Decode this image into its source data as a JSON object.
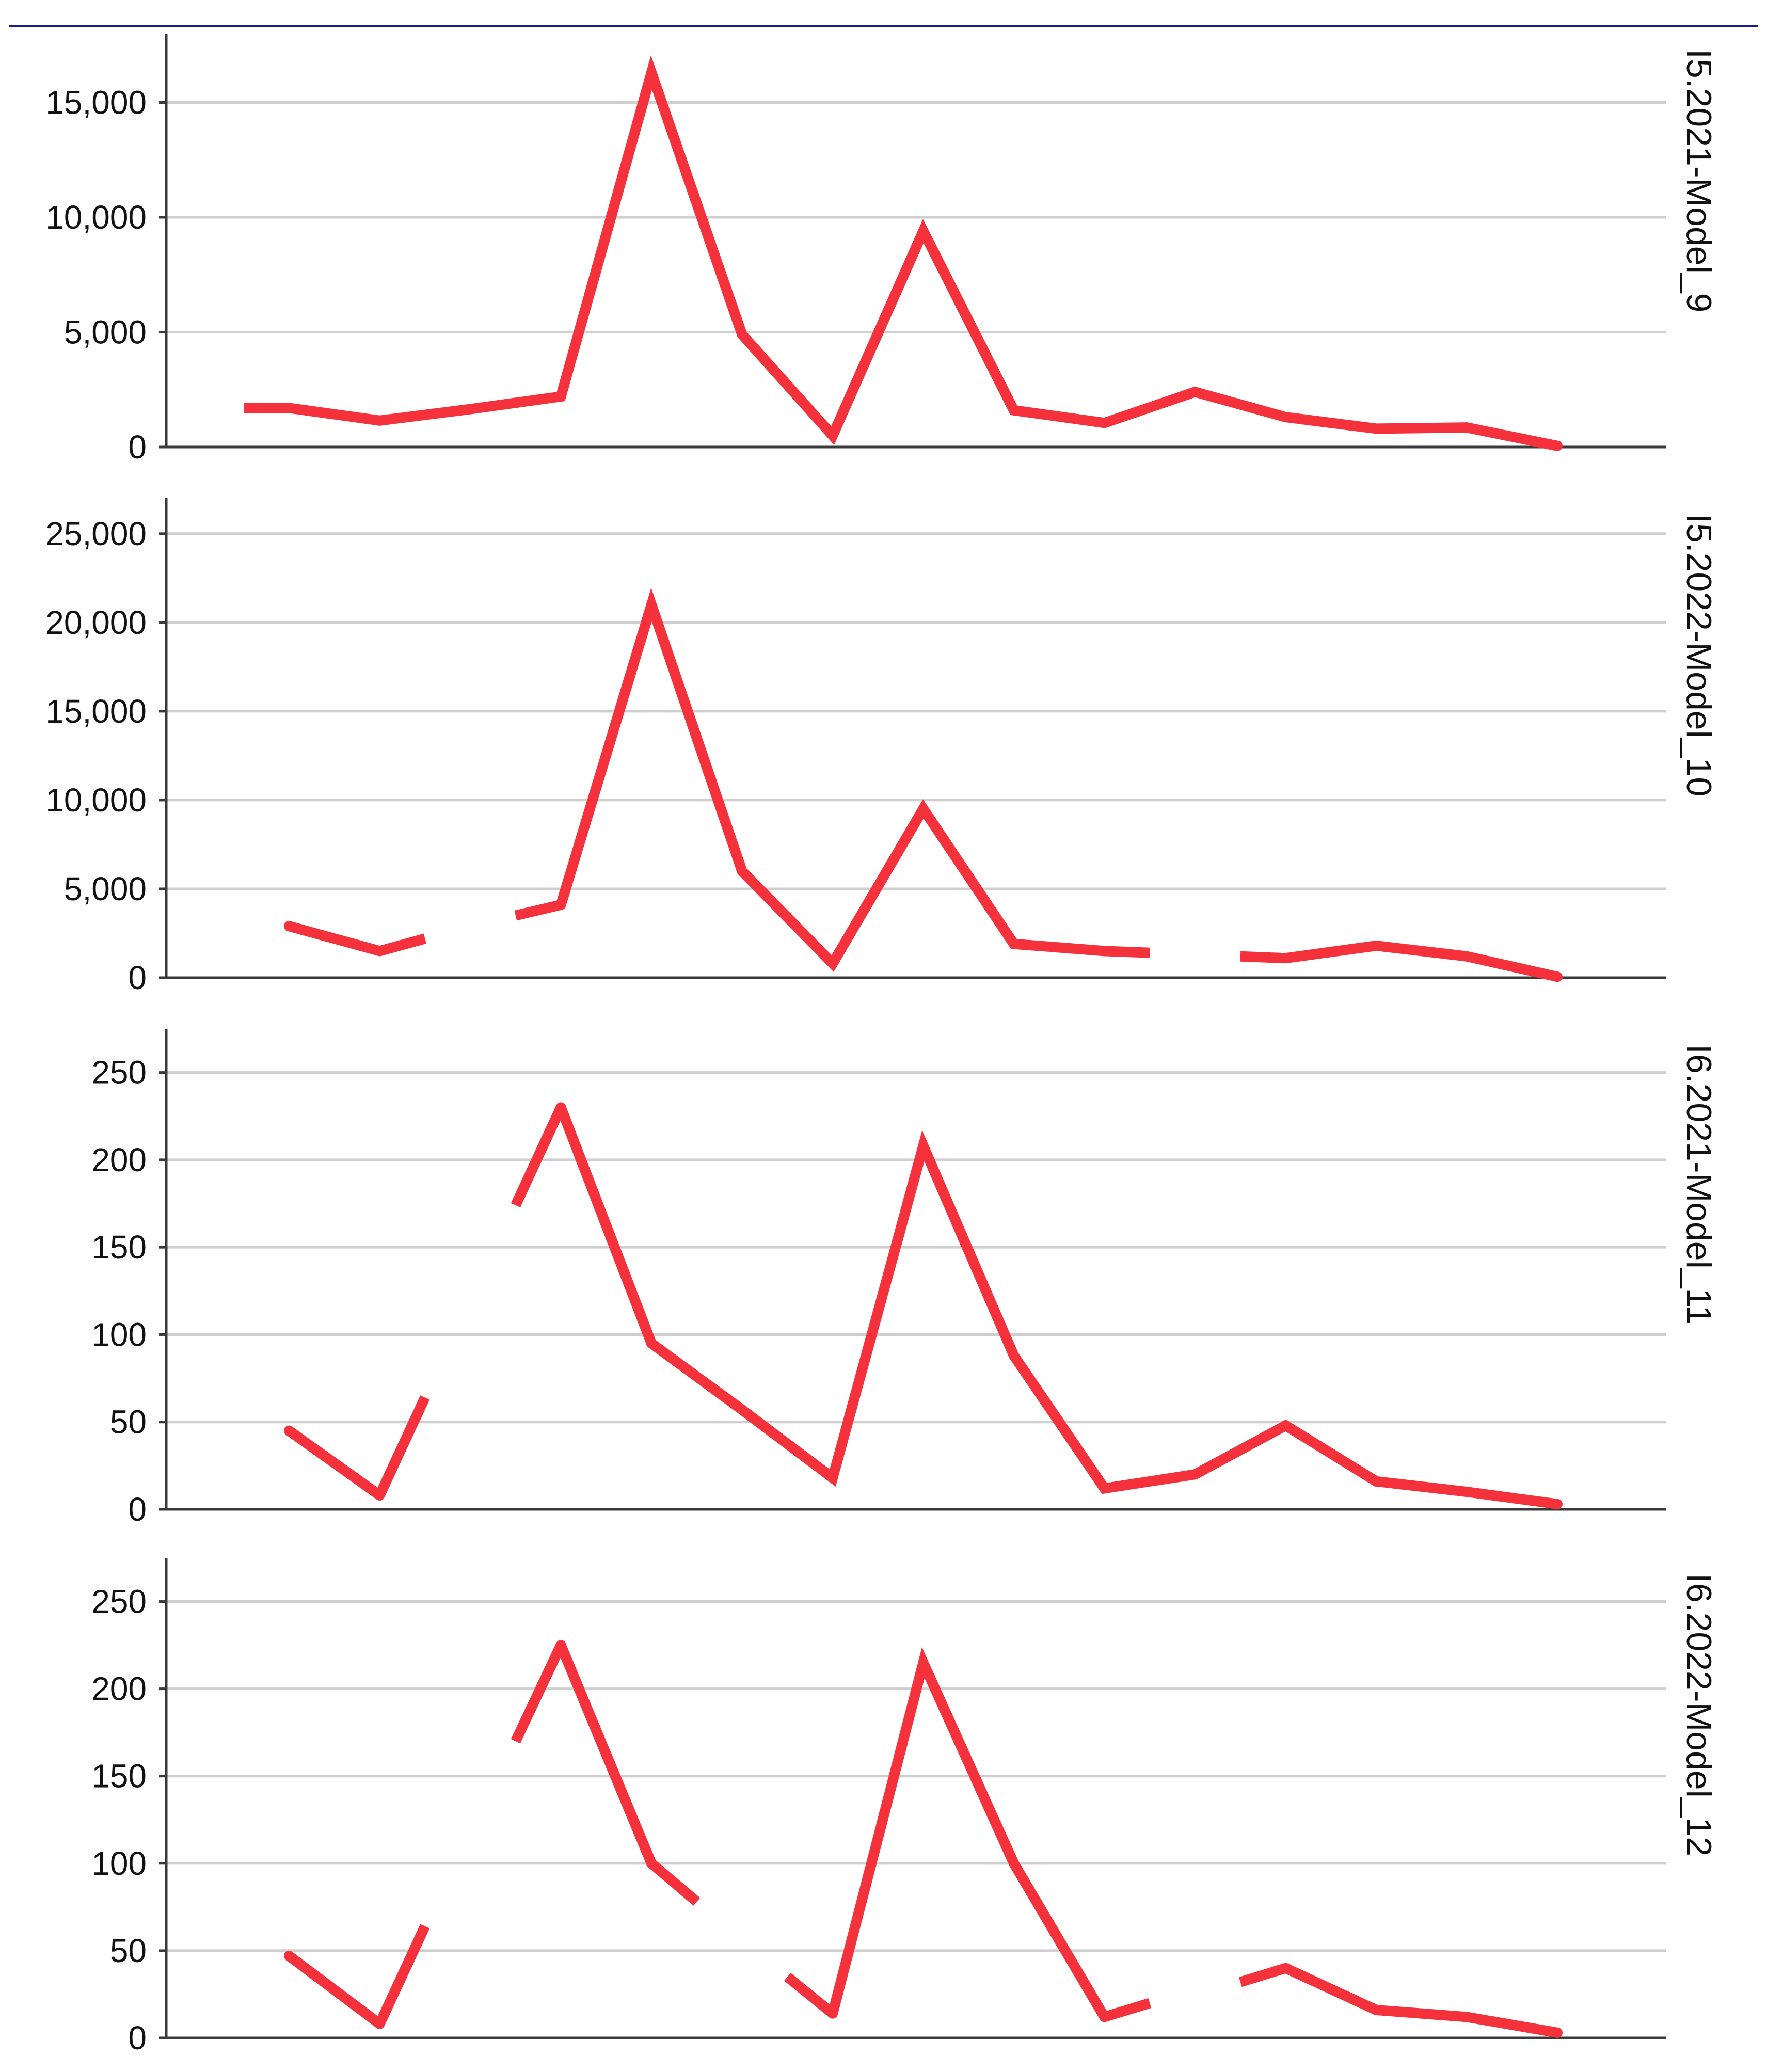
{
  "chart_data": [
    {
      "type": "line",
      "panel_label": "I5.2021-Model_9",
      "ylim": [
        0,
        18000
      ],
      "yticks": [
        0,
        5000,
        10000,
        15000
      ],
      "ytick_labels": [
        "0",
        "5,000",
        "10,000",
        "15,000"
      ],
      "x": [
        1,
        2,
        3,
        4,
        5,
        6,
        7,
        8,
        9,
        10,
        11,
        12,
        13,
        14,
        15,
        16
      ],
      "values": [
        1700,
        1150,
        1650,
        2200,
        16300,
        4900,
        500,
        9400,
        1600,
        1050,
        2400,
        1300,
        800,
        850,
        50,
        null
      ],
      "partial_start": [
        0.5,
        1700
      ],
      "grid": true,
      "color": "#f5323c"
    },
    {
      "type": "line",
      "panel_label": "I5.2022-Model_10",
      "ylim": [
        0,
        27000
      ],
      "yticks": [
        0,
        5000,
        10000,
        15000,
        20000,
        25000
      ],
      "ytick_labels": [
        "0",
        "5,000",
        "10,000",
        "15,000",
        "20,000",
        "25,000"
      ],
      "x": [
        1,
        2,
        3,
        4,
        5,
        6,
        7,
        8,
        9,
        10,
        11,
        12,
        13,
        14,
        15,
        16
      ],
      "values": [
        2900,
        1500,
        null,
        4100,
        21000,
        6000,
        800,
        9500,
        1900,
        1500,
        null,
        1100,
        1800,
        1200,
        50,
        null
      ],
      "partial_segments": [
        [
          [
            2,
            1500
          ],
          [
            2.5,
            2200
          ]
        ],
        [
          [
            3.5,
            3500
          ],
          [
            4,
            4100
          ]
        ],
        [
          [
            10,
            1500
          ],
          [
            10.5,
            1400
          ]
        ],
        [
          [
            11.5,
            1200
          ],
          [
            12,
            1100
          ]
        ]
      ],
      "grid": true,
      "color": "#f5323c"
    },
    {
      "type": "line",
      "panel_label": "I6.2021-Model_11",
      "ylim": [
        0,
        275
      ],
      "yticks": [
        0,
        50,
        100,
        150,
        200,
        250
      ],
      "ytick_labels": [
        "0",
        "50",
        "100",
        "150",
        "200",
        "250"
      ],
      "x": [
        1,
        2,
        3,
        4,
        5,
        6,
        7,
        8,
        9,
        10,
        11,
        12,
        13,
        14,
        15,
        16
      ],
      "values": [
        45,
        8,
        null,
        230,
        95,
        57,
        18,
        208,
        88,
        12,
        20,
        48,
        16,
        10,
        3,
        null
      ],
      "partial_segments": [
        [
          [
            2,
            8
          ],
          [
            2.5,
            64
          ]
        ],
        [
          [
            3.5,
            174
          ],
          [
            4,
            230
          ]
        ]
      ],
      "grid": true,
      "color": "#f5323c"
    },
    {
      "type": "line",
      "panel_label": "I6.2022-Model_12",
      "ylim": [
        0,
        275
      ],
      "yticks": [
        0,
        50,
        100,
        150,
        200,
        250
      ],
      "ytick_labels": [
        "0",
        "50",
        "100",
        "150",
        "200",
        "250"
      ],
      "x": [
        1,
        2,
        3,
        4,
        5,
        6,
        7,
        8,
        9,
        10,
        11,
        12,
        13,
        14,
        15,
        16
      ],
      "values": [
        47,
        8,
        null,
        225,
        100,
        null,
        14,
        215,
        100,
        12,
        null,
        40,
        16,
        12,
        3,
        null
      ],
      "partial_segments": [
        [
          [
            2,
            8
          ],
          [
            2.5,
            64
          ]
        ],
        [
          [
            3.5,
            170
          ],
          [
            4,
            225
          ]
        ],
        [
          [
            5,
            100
          ],
          [
            5.5,
            78
          ]
        ],
        [
          [
            6.5,
            35
          ],
          [
            7,
            14
          ]
        ],
        [
          [
            10,
            12
          ],
          [
            10.5,
            20
          ]
        ],
        [
          [
            11.5,
            32
          ],
          [
            12,
            40
          ]
        ]
      ],
      "grid": true,
      "color": "#f5323c"
    }
  ]
}
